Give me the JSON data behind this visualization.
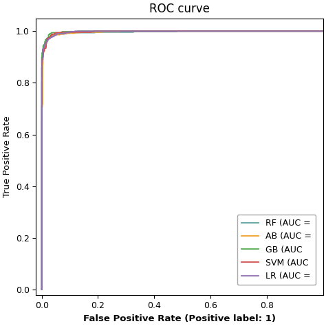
{
  "title": "ROC curve",
  "xlabel": "False Positive Rate (Positive label: 1)",
  "ylabel": "True Positive Rate",
  "models": [
    "RF",
    "AB",
    "GB",
    "SVM",
    "LR"
  ],
  "colors": [
    "#5ba3a0",
    "#f0a030",
    "#55aa55",
    "#d05050",
    "#9070b0"
  ],
  "auc_labels": [
    "RF (AUC =",
    "AB (AUC =",
    "GB (AUC",
    "SVM (AUC",
    "LR (AUC ="
  ],
  "xlim": [
    -0.02,
    1.0
  ],
  "ylim": [
    -0.02,
    1.05
  ],
  "xticks": [
    0.0,
    0.2,
    0.4,
    0.6,
    0.8
  ],
  "yticks": [
    0.0,
    0.2,
    0.4,
    0.6,
    0.8,
    1.0
  ],
  "background_color": "#ffffff",
  "model_seeds": [
    1,
    2,
    3,
    4,
    5
  ],
  "model_alphas": [
    0.12,
    0.16,
    0.13,
    0.2,
    0.15
  ],
  "linewidth": 1.3
}
